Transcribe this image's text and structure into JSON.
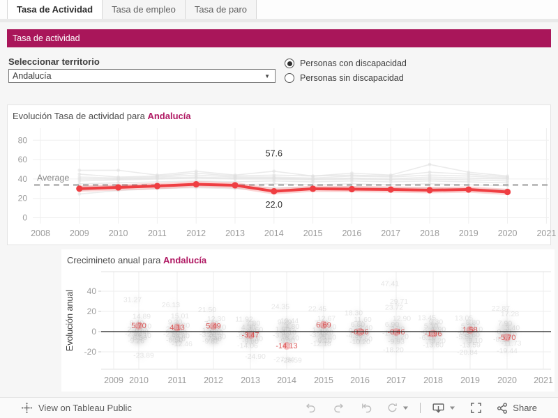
{
  "tabs": [
    {
      "label": "Tasa de Actividad",
      "active": true
    },
    {
      "label": "Tasa de empleo",
      "active": false
    },
    {
      "label": "Tasa de paro",
      "active": false
    }
  ],
  "banner": {
    "title": "Tasa de actividad"
  },
  "filter": {
    "label": "Seleccionar territorio",
    "selected": "Andalucía"
  },
  "radios": {
    "options": [
      {
        "label": "Personas con discapacidad",
        "selected": true
      },
      {
        "label": "Personas sin discapacidad",
        "selected": false
      }
    ]
  },
  "colors": {
    "banner": "#a9165a",
    "highlight_text": "#b01963",
    "line_red": "#ef3e42",
    "gray_series": "#dedede",
    "axis_text": "#9b9b9b",
    "annotation_text": "#2b2b2b",
    "average_line": "#9a9a9a",
    "scatter_red_label": "#d94343",
    "zero_line": "#1a1a1a",
    "grid": "#efefef"
  },
  "chart_data": [
    {
      "type": "line",
      "title_prefix": "Evolución Tasa de actividad para ",
      "title_highlight": "Andalucía",
      "x_ticks": [
        2008,
        2009,
        2010,
        2011,
        2012,
        2013,
        2014,
        2015,
        2016,
        2017,
        2018,
        2019,
        2020,
        2021
      ],
      "y_ticks": [
        0,
        20,
        40,
        60,
        80
      ],
      "ylim": [
        0,
        88
      ],
      "years": [
        2009,
        2010,
        2011,
        2012,
        2013,
        2014,
        2015,
        2016,
        2017,
        2018,
        2019,
        2020
      ],
      "series": [
        {
          "name": "Andalucía",
          "values": [
            30.0,
            31.3,
            32.7,
            34.5,
            33.5,
            27.3,
            29.9,
            29.5,
            29.1,
            28.4,
            29.1,
            26.6
          ]
        }
      ],
      "average": {
        "label": "Average",
        "value": 33.8
      },
      "annotations": [
        {
          "year": 2014,
          "value": 57.6,
          "label": "57.6"
        },
        {
          "year": 2014,
          "value": 22.0,
          "label": "22.0"
        }
      ],
      "background_series": [
        [
          49,
          49,
          44,
          48,
          44,
          48,
          43,
          46,
          44,
          55,
          47,
          43
        ],
        [
          45,
          42,
          43,
          46,
          43,
          44,
          43,
          44,
          43,
          47,
          45,
          42
        ],
        [
          42,
          41,
          42,
          44,
          42,
          42,
          41,
          43,
          42,
          44,
          43,
          41
        ],
        [
          40,
          40,
          41,
          42,
          41,
          41,
          40,
          41,
          40,
          42,
          41,
          40
        ],
        [
          38,
          39,
          40,
          41,
          40,
          40,
          39,
          40,
          39,
          40,
          39,
          38
        ],
        [
          35,
          36,
          37,
          38,
          37,
          38,
          37,
          38,
          37,
          38,
          37,
          36
        ],
        [
          32,
          33,
          34,
          35,
          34,
          35,
          34,
          35,
          34,
          35,
          34,
          33
        ],
        [
          28,
          31,
          32,
          33,
          32,
          31,
          31,
          32,
          31,
          31,
          30,
          29
        ],
        [
          24.5,
          28,
          30,
          31,
          30,
          29,
          29,
          30,
          29,
          30,
          29,
          28
        ]
      ]
    },
    {
      "type": "scatter",
      "title_prefix": "Crecimineto anual para ",
      "title_highlight": "Andalucía",
      "ylabel": "Evolución anual",
      "x_ticks": [
        2009,
        2010,
        2011,
        2012,
        2013,
        2014,
        2015,
        2016,
        2017,
        2018,
        2019,
        2020,
        2021
      ],
      "y_ticks": [
        -20,
        0,
        20,
        40
      ],
      "points": [
        {
          "year": 2010,
          "label": "5.70",
          "value": 5.7,
          "others": [
            31.27,
            14.89,
            8.4,
            5.2,
            2.1,
            -0.8,
            -2.4,
            -4.1,
            -6.3,
            -9.26,
            -23.89
          ]
        },
        {
          "year": 2011,
          "label": "4.13",
          "value": 4.13,
          "others": [
            26.13,
            15.01,
            9.2,
            5.8,
            2.4,
            -0.9,
            -2.8,
            -4.6,
            -7.1,
            -8.5,
            -12.46
          ]
        },
        {
          "year": 2012,
          "label": "5.49",
          "value": 5.49,
          "others": [
            21.5,
            12.3,
            7.6,
            4.1,
            1.2,
            -1.4,
            -3.2,
            -5.3,
            -7.4,
            -9.82
          ]
        },
        {
          "year": 2013,
          "label": "-3.47",
          "value": -3.47,
          "others": [
            11.92,
            7.8,
            4.3,
            1.6,
            -0.9,
            -2.6,
            -5.1,
            -7.3,
            -9.6,
            -14.06,
            -24.9
          ]
        },
        {
          "year": 2014,
          "label": "-14.13",
          "value": -14.13,
          "others": [
            24.35,
            10.44,
            9.29,
            4.8,
            1.9,
            -1.1,
            -3.8,
            -6.4,
            -9.3,
            -27.94,
            -28.59
          ]
        },
        {
          "year": 2015,
          "label": "6.69",
          "value": 6.69,
          "others": [
            22.45,
            12.67,
            7.9,
            4.4,
            1.3,
            -1.2,
            -3.4,
            -5.8,
            -9.1,
            -12.18
          ]
        },
        {
          "year": 2016,
          "label": "-0.36",
          "value": -0.36,
          "others": [
            18.3,
            11.6,
            6.8,
            3.4,
            0.6,
            -1.9,
            -4.3,
            -7.5,
            -10.2
          ]
        },
        {
          "year": 2017,
          "label": "-0.46",
          "value": -0.46,
          "others": [
            47.41,
            29.71,
            23.72,
            12.9,
            6.9,
            2.3,
            -1.6,
            -5.2,
            -9.93,
            -18.2
          ]
        },
        {
          "year": 2018,
          "label": "-1.96",
          "value": -1.96,
          "others": [
            13.45,
            9.3,
            5.1,
            1.9,
            -0.6,
            -3.1,
            -6.1,
            -9.2,
            -13.6
          ]
        },
        {
          "year": 2019,
          "label": "1.58",
          "value": 1.58,
          "others": [
            13.05,
            8.8,
            5.2,
            2.1,
            -0.9,
            -3.6,
            -5.5,
            -9.1,
            -13.59,
            -20.84
          ]
        },
        {
          "year": 2020,
          "label": "-5.70",
          "value": -5.7,
          "others": [
            22.87,
            17.28,
            7.9,
            3.4,
            -0.2,
            -3.1,
            -8.1,
            -11.73,
            -19.44
          ]
        }
      ]
    }
  ],
  "footer": {
    "view_label": "View on Tableau Public",
    "share_label": "Share"
  }
}
